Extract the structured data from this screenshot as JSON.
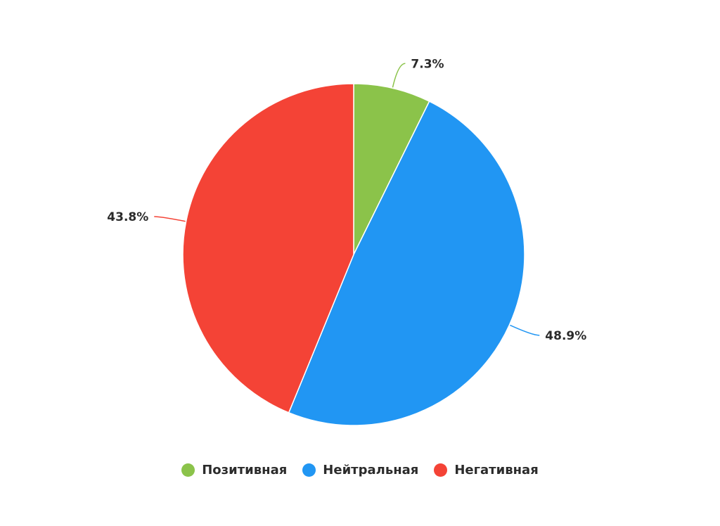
{
  "chart_data": {
    "type": "pie",
    "title": "",
    "categories": [
      "Позитивная",
      "Нейтральная",
      "Негативная"
    ],
    "values": [
      7.3,
      48.9,
      43.8
    ],
    "value_labels": [
      "7.3%",
      "48.9%",
      "43.8%"
    ],
    "colors": [
      "#8BC34A",
      "#2196F3",
      "#F44336"
    ],
    "start_angle": "12 o'clock",
    "direction": "clockwise",
    "legend_position": "bottom-center"
  },
  "legend": {
    "items": [
      {
        "label": "Позитивная",
        "color": "#8BC34A"
      },
      {
        "label": "Нейтральная",
        "color": "#2196F3"
      },
      {
        "label": "Негативная",
        "color": "#F44336"
      }
    ]
  }
}
